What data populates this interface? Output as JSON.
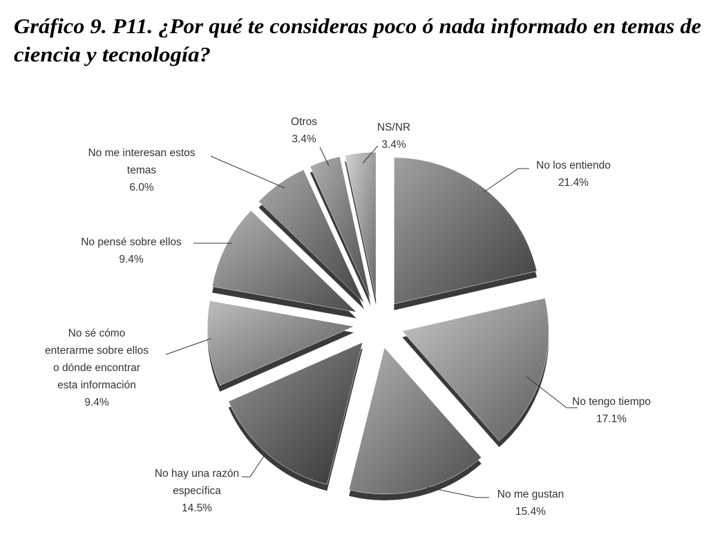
{
  "chart_data": {
    "type": "pie",
    "title_lines": [
      "Gráfico 9. P11. ¿Por qué te consideras poco ó nada informado en temas de",
      "ciencia y tecnología?"
    ],
    "unit": "%",
    "slices": [
      {
        "label_lines": [
          "No los entiendo"
        ],
        "value": 21.4,
        "value_label": "21.4%",
        "color": "#6e6e6e"
      },
      {
        "label_lines": [
          "No tengo tiempo"
        ],
        "value": 17.1,
        "value_label": "17.1%",
        "color": "#a8a8a8"
      },
      {
        "label_lines": [
          "No me gustan"
        ],
        "value": 15.4,
        "value_label": "15.4%",
        "color": "#8c8c8c"
      },
      {
        "label_lines": [
          "No hay una razón",
          "específica"
        ],
        "value": 14.5,
        "value_label": "14.5%",
        "color": "#5c5c5c"
      },
      {
        "label_lines": [
          "No sé cómo",
          "enterarme sobre ellos",
          "o dónde encontrar",
          "esta información"
        ],
        "value": 9.4,
        "value_label": "9.4%",
        "color": "#9a9a9a"
      },
      {
        "label_lines": [
          "No pensé sobre ellos"
        ],
        "value": 9.4,
        "value_label": "9.4%",
        "color": "#8a8a8a"
      },
      {
        "label_lines": [
          "No me interesan estos",
          "temas"
        ],
        "value": 6.0,
        "value_label": "6.0%",
        "color": "#7a7a7a"
      },
      {
        "label_lines": [
          "Otros"
        ],
        "value": 3.4,
        "value_label": "3.4%",
        "color": "#868686"
      },
      {
        "label_lines": [
          "NS/NR"
        ],
        "value": 3.4,
        "value_label": "3.4%",
        "color": "#bdbdbd"
      }
    ],
    "start_angle": "12 o'clock",
    "direction": "clockwise",
    "exploded": true,
    "legend": "none"
  }
}
